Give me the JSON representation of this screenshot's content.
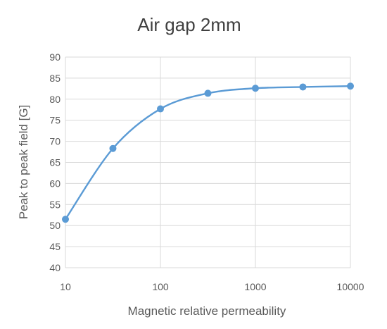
{
  "chart_data": {
    "type": "scatter",
    "title": "Air gap 2mm",
    "xlabel": "Magnetic relative permeability",
    "ylabel": "Peak to peak field [G]",
    "x_scale": "log",
    "xlim": [
      10,
      10000
    ],
    "ylim": [
      40,
      90
    ],
    "x_ticks": [
      10,
      100,
      1000,
      10000
    ],
    "x_tick_labels": [
      "10",
      "100",
      "1000",
      "10000"
    ],
    "y_ticks": [
      40,
      45,
      50,
      55,
      60,
      65,
      70,
      75,
      80,
      85,
      90
    ],
    "y_tick_labels": [
      "40",
      "45",
      "50",
      "55",
      "60",
      "65",
      "70",
      "75",
      "80",
      "85",
      "90"
    ],
    "grid": true,
    "legend": "none",
    "series": [
      {
        "color": "#5b9bd5",
        "x": [
          10,
          31.6,
          100,
          316,
          1000,
          3160,
          10000
        ],
        "y": [
          51.5,
          68.3,
          77.7,
          81.4,
          82.6,
          82.9,
          83.1
        ]
      }
    ]
  }
}
